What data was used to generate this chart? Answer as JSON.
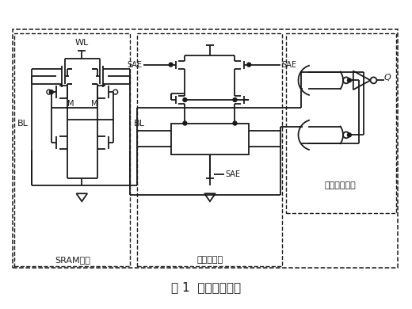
{
  "title": "图 1  存储型随机源",
  "title_fontsize": 11,
  "bg_color": "#ffffff",
  "line_color": "#1a1a1a",
  "sram_label": "SRAM电路",
  "sense_label": "灵敏放大器",
  "latch_label": "数据锁存电路",
  "wl_label": "WL",
  "bl_left_label": "BL",
  "bl_right_label": "BL",
  "sae_left_label": "SAE",
  "sae_right_label": "SAE",
  "sae_bot_label": "SAE",
  "m_left": "M",
  "m_right": "M",
  "q_label": "Q"
}
